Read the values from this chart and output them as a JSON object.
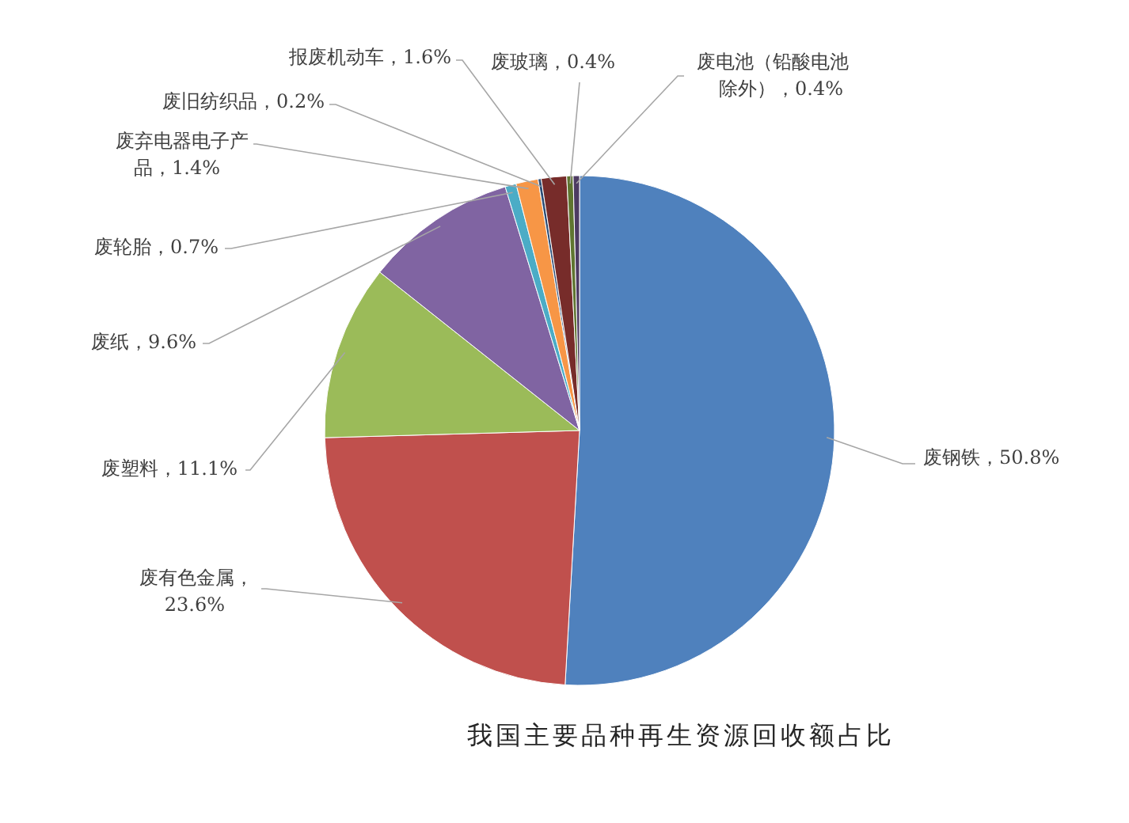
{
  "chart_data": {
    "type": "pie",
    "title": "我国主要品种再生资源回收额占比",
    "categories": [
      "废钢铁",
      "废有色金属",
      "废塑料",
      "废纸",
      "废轮胎",
      "废弃电器电子产品",
      "废旧纺织品",
      "报废机动车",
      "废玻璃",
      "废电池（铅酸电池除外）"
    ],
    "values": [
      50.8,
      23.6,
      11.1,
      9.6,
      0.7,
      1.4,
      0.2,
      1.6,
      0.4,
      0.4
    ],
    "value_labels": [
      "，50.8%",
      "，23.6%",
      "，11.1%",
      "，9.6%",
      "，0.7%",
      "，1.4%",
      "，0.2%",
      "，1.6%",
      "，0.4%",
      "，0.4%"
    ],
    "colors": [
      "#4f81bd",
      "#c0504d",
      "#9bbb59",
      "#8064a2",
      "#4bacc6",
      "#f79646",
      "#2c4d75",
      "#772c2a",
      "#5f7530",
      "#4d3b62"
    ]
  }
}
